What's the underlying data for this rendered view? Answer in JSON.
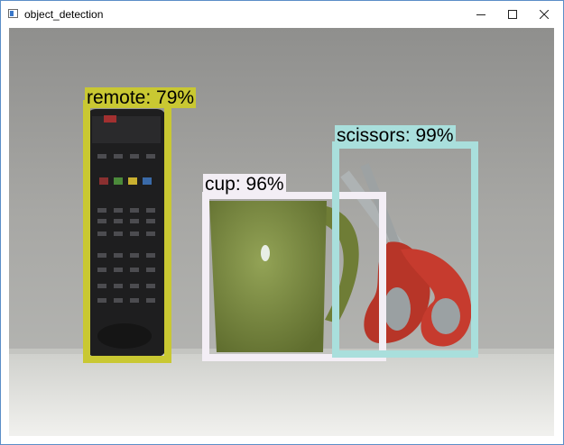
{
  "window": {
    "title": "object_detection",
    "icon": "app-window-icon",
    "controls": [
      "minimize-icon",
      "maximize-icon",
      "close-icon"
    ]
  },
  "detections": [
    {
      "label": "remote: 79%",
      "color": "#c9c832"
    },
    {
      "label": "cup: 96%",
      "color": "#f3eef5"
    },
    {
      "label": "scissors: 99%",
      "color": "#a9dfdc"
    }
  ]
}
